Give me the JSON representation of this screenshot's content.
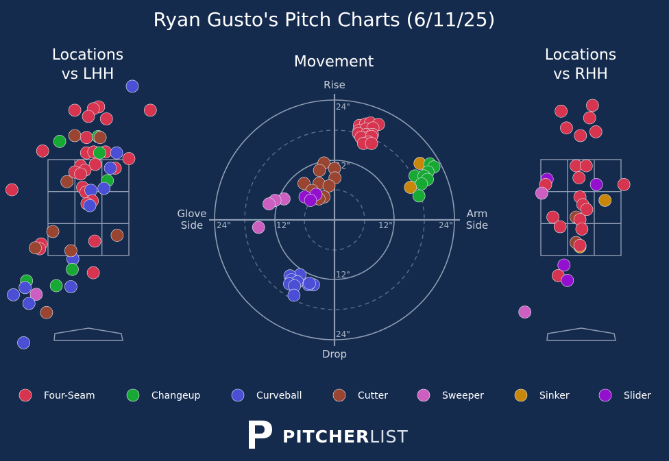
{
  "header": {
    "title": "Ryan Gusto's Pitch Charts (6/11/25)"
  },
  "panels": {
    "lhh_title_1": "Locations",
    "lhh_title_2": "vs LHH",
    "movement_title": "Movement",
    "rhh_title_1": "Locations",
    "rhh_title_2": "vs RHH"
  },
  "movement_axes": {
    "top": "Rise",
    "bottom": "Drop",
    "left_1": "Glove",
    "left_2": "Side",
    "right_1": "Arm",
    "right_2": "Side",
    "ticks": {
      "up_24": "24\"",
      "up_12": "12\"",
      "down_12": "12\"",
      "down_24": "24\"",
      "left_24": "24\"",
      "left_12": "12\"",
      "right_12": "12\"",
      "right_24": "24\""
    }
  },
  "colors": {
    "background": "#152b4d",
    "Four-Seam": "#d6344f",
    "Changeup": "#17a933",
    "Curveball": "#4a4fd6",
    "Cutter": "#9a4432",
    "Sweeper": "#cc5fc0",
    "Sinker": "#c8870a",
    "Slider": "#9410cf"
  },
  "legend": [
    "Four-Seam",
    "Changeup",
    "Curveball",
    "Cutter",
    "Sweeper",
    "Sinker",
    "Slider"
  ],
  "brand": {
    "part1": "PITCHER",
    "part2": "LIST",
    "logo_icon": "pitcherlist-p-logo"
  },
  "chart_data": [
    {
      "type": "scatter",
      "name": "Locations vs LHH",
      "x_units": "feet from plate center (catcher view)",
      "y_units": "feet above ground",
      "strike_zone": {
        "x": [
          -0.83,
          0.83
        ],
        "y": [
          1.5,
          3.5
        ]
      },
      "points": [
        {
          "pitch": "Curveball",
          "x": 0.9,
          "y": 5.03
        },
        {
          "pitch": "Four-Seam",
          "x": 0.21,
          "y": 4.6
        },
        {
          "pitch": "Four-Seam",
          "x": 0.1,
          "y": 4.56
        },
        {
          "pitch": "Four-Seam",
          "x": -0.28,
          "y": 4.53
        },
        {
          "pitch": "Four-Seam",
          "x": 1.27,
          "y": 4.53
        },
        {
          "pitch": "Four-Seam",
          "x": 0.0,
          "y": 4.4
        },
        {
          "pitch": "Four-Seam",
          "x": 0.37,
          "y": 4.35
        },
        {
          "pitch": "Cutter",
          "x": -0.28,
          "y": 4.0
        },
        {
          "pitch": "Four-Seam",
          "x": -0.04,
          "y": 3.96
        },
        {
          "pitch": "Changeup",
          "x": 0.2,
          "y": 3.98
        },
        {
          "pitch": "Cutter",
          "x": 0.24,
          "y": 3.96
        },
        {
          "pitch": "Changeup",
          "x": -0.59,
          "y": 3.88
        },
        {
          "pitch": "Four-Seam",
          "x": -0.94,
          "y": 3.68
        },
        {
          "pitch": "Four-Seam",
          "x": -0.04,
          "y": 3.64
        },
        {
          "pitch": "Four-Seam",
          "x": 0.11,
          "y": 3.66
        },
        {
          "pitch": "Four-Seam",
          "x": 0.35,
          "y": 3.66
        },
        {
          "pitch": "Curveball",
          "x": 0.58,
          "y": 3.64
        },
        {
          "pitch": "Changeup",
          "x": 0.23,
          "y": 3.64
        },
        {
          "pitch": "Four-Seam",
          "x": 0.83,
          "y": 3.52
        },
        {
          "pitch": "Four-Seam",
          "x": -0.16,
          "y": 3.37
        },
        {
          "pitch": "Four-Seam",
          "x": 0.14,
          "y": 3.4
        },
        {
          "pitch": "Four-Seam",
          "x": 0.55,
          "y": 3.32
        },
        {
          "pitch": "Curveball",
          "x": 0.45,
          "y": 3.32
        },
        {
          "pitch": "Four-Seam",
          "x": -0.28,
          "y": 3.24
        },
        {
          "pitch": "Four-Seam",
          "x": -0.07,
          "y": 3.28
        },
        {
          "pitch": "Four-Seam",
          "x": -0.16,
          "y": 3.2
        },
        {
          "pitch": "Changeup",
          "x": 0.39,
          "y": 3.06
        },
        {
          "pitch": "Cutter",
          "x": -0.44,
          "y": 3.04
        },
        {
          "pitch": "Four-Seam",
          "x": -1.57,
          "y": 2.87
        },
        {
          "pitch": "Four-Seam",
          "x": -0.12,
          "y": 2.92
        },
        {
          "pitch": "Four-Seam",
          "x": -0.05,
          "y": 2.82
        },
        {
          "pitch": "Curveball",
          "x": 0.05,
          "y": 2.86
        },
        {
          "pitch": "Curveball",
          "x": 0.32,
          "y": 2.9
        },
        {
          "pitch": "Four-Seam",
          "x": 0.08,
          "y": 2.64
        },
        {
          "pitch": "Four-Seam",
          "x": -0.03,
          "y": 2.58
        },
        {
          "pitch": "Curveball",
          "x": 0.03,
          "y": 2.54
        },
        {
          "pitch": "Cutter",
          "x": -0.73,
          "y": 2.0
        },
        {
          "pitch": "Cutter",
          "x": 0.59,
          "y": 1.92
        },
        {
          "pitch": "Four-Seam",
          "x": 0.13,
          "y": 1.8
        },
        {
          "pitch": "Cutter",
          "x": -2.02,
          "y": 1.65
        },
        {
          "pitch": "Four-Seam",
          "x": -0.97,
          "y": 1.74
        },
        {
          "pitch": "Four-Seam",
          "x": -1.0,
          "y": 1.64
        },
        {
          "pitch": "Cutter",
          "x": -1.09,
          "y": 1.66
        },
        {
          "pitch": "Curveball",
          "x": -0.32,
          "y": 1.43
        },
        {
          "pitch": "Cutter",
          "x": -0.36,
          "y": 1.6
        },
        {
          "pitch": "Changeup",
          "x": -0.33,
          "y": 1.21
        },
        {
          "pitch": "Four-Seam",
          "x": 0.1,
          "y": 1.14
        },
        {
          "pitch": "Changeup",
          "x": -1.27,
          "y": 0.97
        },
        {
          "pitch": "Changeup",
          "x": -0.66,
          "y": 0.87
        },
        {
          "pitch": "Curveball",
          "x": -0.36,
          "y": 0.85
        },
        {
          "pitch": "Curveball",
          "x": -1.3,
          "y": 0.83
        },
        {
          "pitch": "Curveball",
          "x": -1.54,
          "y": 0.68
        },
        {
          "pitch": "Sweeper",
          "x": -1.07,
          "y": 0.69
        },
        {
          "pitch": "Curveball",
          "x": -1.22,
          "y": 0.5
        },
        {
          "pitch": "Cutter",
          "x": -0.86,
          "y": 0.31
        },
        {
          "pitch": "Curveball",
          "x": -1.33,
          "y": -0.32
        }
      ]
    },
    {
      "type": "scatter",
      "name": "Movement",
      "x_units": "inches horizontal break (positive = arm side)",
      "y_units": "inches induced vertical break (positive = rise)",
      "range": 24,
      "points": [
        {
          "pitch": "Four-Seam",
          "x": 5,
          "y": 18.9
        },
        {
          "pitch": "Four-Seam",
          "x": 6.2,
          "y": 19.2
        },
        {
          "pitch": "Four-Seam",
          "x": 7.2,
          "y": 19.4
        },
        {
          "pitch": "Four-Seam",
          "x": 8.8,
          "y": 19.1
        },
        {
          "pitch": "Four-Seam",
          "x": 4.9,
          "y": 17.9
        },
        {
          "pitch": "Four-Seam",
          "x": 6.3,
          "y": 18.2
        },
        {
          "pitch": "Four-Seam",
          "x": 7.7,
          "y": 18.4
        },
        {
          "pitch": "Four-Seam",
          "x": 4.8,
          "y": 17.3
        },
        {
          "pitch": "Four-Seam",
          "x": 6.4,
          "y": 17.1
        },
        {
          "pitch": "Four-Seam",
          "x": 7.6,
          "y": 17.1
        },
        {
          "pitch": "Four-Seam",
          "x": 6.1,
          "y": 16.4
        },
        {
          "pitch": "Four-Seam",
          "x": 5.3,
          "y": 16.5
        },
        {
          "pitch": "Four-Seam",
          "x": 7.4,
          "y": 16.7
        },
        {
          "pitch": "Four-Seam",
          "x": 6.8,
          "y": 15.6
        },
        {
          "pitch": "Four-Seam",
          "x": 5.8,
          "y": 15.3
        },
        {
          "pitch": "Four-Seam",
          "x": 7.4,
          "y": 15.3
        },
        {
          "pitch": "Sinker",
          "x": 17.1,
          "y": 11.3
        },
        {
          "pitch": "Changeup",
          "x": 19.1,
          "y": 11.2
        },
        {
          "pitch": "Changeup",
          "x": 19.9,
          "y": 10.6
        },
        {
          "pitch": "Changeup",
          "x": 18.7,
          "y": 9.6
        },
        {
          "pitch": "Changeup",
          "x": 16.1,
          "y": 8.8
        },
        {
          "pitch": "Changeup",
          "x": 17.9,
          "y": 8.8
        },
        {
          "pitch": "Changeup",
          "x": 18.6,
          "y": 8.1
        },
        {
          "pitch": "Changeup",
          "x": 17.4,
          "y": 7.2
        },
        {
          "pitch": "Sinker",
          "x": 15.2,
          "y": 6.5
        },
        {
          "pitch": "Changeup",
          "x": 16.9,
          "y": 4.8
        },
        {
          "pitch": "Cutter",
          "x": -2.1,
          "y": 11.4
        },
        {
          "pitch": "Cutter",
          "x": 0,
          "y": 10.3
        },
        {
          "pitch": "Cutter",
          "x": -3.0,
          "y": 9.9
        },
        {
          "pitch": "Cutter",
          "x": 0.1,
          "y": 8.4
        },
        {
          "pitch": "Cutter",
          "x": -6.1,
          "y": 7.3
        },
        {
          "pitch": "Cutter",
          "x": -3.1,
          "y": 7.3
        },
        {
          "pitch": "Cutter",
          "x": -1.1,
          "y": 6.8
        },
        {
          "pitch": "Cutter",
          "x": -4.5,
          "y": 5.9
        },
        {
          "pitch": "Cutter",
          "x": -2.1,
          "y": 4.6
        },
        {
          "pitch": "Cutter",
          "x": -3.1,
          "y": 4.2
        },
        {
          "pitch": "Slider",
          "x": -3.7,
          "y": 5.1
        },
        {
          "pitch": "Slider",
          "x": -5.9,
          "y": 4.6
        },
        {
          "pitch": "Slider",
          "x": -4.8,
          "y": 3.9
        },
        {
          "pitch": "Sweeper",
          "x": -10.1,
          "y": 4.2
        },
        {
          "pitch": "Sweeper",
          "x": -11.9,
          "y": 3.9
        },
        {
          "pitch": "Sweeper",
          "x": -13.1,
          "y": 3.2
        },
        {
          "pitch": "Sweeper",
          "x": -15.2,
          "y": -1.5
        },
        {
          "pitch": "Curveball",
          "x": -6.9,
          "y": -11.0
        },
        {
          "pitch": "Curveball",
          "x": -8.9,
          "y": -11.2
        },
        {
          "pitch": "Curveball",
          "x": -8.6,
          "y": -12.0
        },
        {
          "pitch": "Curveball",
          "x": -7.4,
          "y": -12.4
        },
        {
          "pitch": "Curveball",
          "x": -9.0,
          "y": -12.8
        },
        {
          "pitch": "Curveball",
          "x": -4.2,
          "y": -13.0
        },
        {
          "pitch": "Curveball",
          "x": -5.2,
          "y": -13.0
        },
        {
          "pitch": "Curveball",
          "x": -5.0,
          "y": -12.7
        },
        {
          "pitch": "Curveball",
          "x": -8.0,
          "y": -13.2
        },
        {
          "pitch": "Curveball",
          "x": -8.1,
          "y": -15.1
        }
      ]
    },
    {
      "type": "scatter",
      "name": "Locations vs RHH",
      "x_units": "feet from plate center (catcher view)",
      "y_units": "feet above ground",
      "strike_zone": {
        "x": [
          -0.83,
          0.83
        ],
        "y": [
          1.5,
          3.5
        ]
      },
      "points": [
        {
          "pitch": "Four-Seam",
          "x": 0.24,
          "y": 4.63
        },
        {
          "pitch": "Four-Seam",
          "x": -0.41,
          "y": 4.51
        },
        {
          "pitch": "Four-Seam",
          "x": 0.18,
          "y": 4.37
        },
        {
          "pitch": "Four-Seam",
          "x": -0.3,
          "y": 4.16
        },
        {
          "pitch": "Four-Seam",
          "x": 0.31,
          "y": 4.08
        },
        {
          "pitch": "Four-Seam",
          "x": -0.01,
          "y": 4.0
        },
        {
          "pitch": "Four-Seam",
          "x": -0.1,
          "y": 3.37
        },
        {
          "pitch": "Four-Seam",
          "x": 0.11,
          "y": 3.37
        },
        {
          "pitch": "Four-Seam",
          "x": -0.04,
          "y": 3.12
        },
        {
          "pitch": "Slider",
          "x": -0.7,
          "y": 3.09
        },
        {
          "pitch": "Four-Seam",
          "x": -0.73,
          "y": 2.98
        },
        {
          "pitch": "Slider",
          "x": 0.32,
          "y": 2.98
        },
        {
          "pitch": "Four-Seam",
          "x": 0.89,
          "y": 2.98
        },
        {
          "pitch": "Sweeper",
          "x": -0.81,
          "y": 2.8
        },
        {
          "pitch": "Four-Seam",
          "x": -0.02,
          "y": 2.72
        },
        {
          "pitch": "Sinker",
          "x": 0.5,
          "y": 2.65
        },
        {
          "pitch": "Four-Seam",
          "x": 0.04,
          "y": 2.56
        },
        {
          "pitch": "Four-Seam",
          "x": 0.12,
          "y": 2.46
        },
        {
          "pitch": "Four-Seam",
          "x": -0.58,
          "y": 2.3
        },
        {
          "pitch": "Cutter",
          "x": -0.1,
          "y": 2.3
        },
        {
          "pitch": "Four-Seam",
          "x": -0.02,
          "y": 2.25
        },
        {
          "pitch": "Four-Seam",
          "x": -0.43,
          "y": 2.1
        },
        {
          "pitch": "Four-Seam",
          "x": 0.02,
          "y": 2.05
        },
        {
          "pitch": "Sinker",
          "x": -0.02,
          "y": 1.68
        },
        {
          "pitch": "Cutter",
          "x": -0.1,
          "y": 1.77
        },
        {
          "pitch": "Four-Seam",
          "x": -0.02,
          "y": 1.71
        },
        {
          "pitch": "Slider",
          "x": -0.35,
          "y": 1.3
        },
        {
          "pitch": "Four-Seam",
          "x": -0.47,
          "y": 1.08
        },
        {
          "pitch": "Slider",
          "x": -0.28,
          "y": 0.98
        },
        {
          "pitch": "Sweeper",
          "x": -1.16,
          "y": 0.32
        }
      ]
    }
  ]
}
